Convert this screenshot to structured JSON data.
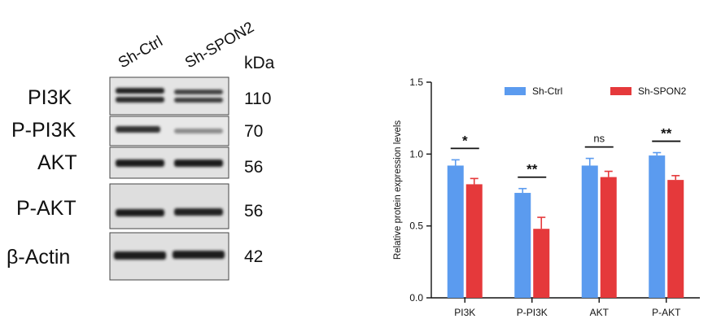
{
  "blot": {
    "lanes": [
      "Sh-Ctrl",
      "Sh-SPON2"
    ],
    "unit": "kDa",
    "rows": [
      {
        "label": "PI3K",
        "kda": "110"
      },
      {
        "label": "P-PI3K",
        "kda": "70"
      },
      {
        "label": "AKT",
        "kda": "56"
      },
      {
        "label": "P-AKT",
        "kda": "56"
      },
      {
        "label": "β-Actin",
        "kda": "42"
      }
    ]
  },
  "chart_data": {
    "type": "bar",
    "title": "",
    "ylabel": "Relative protein expression levels",
    "xlabel": "",
    "categories": [
      "PI3K",
      "P-PI3K",
      "AKT",
      "P-AKT"
    ],
    "ylim": [
      0,
      1.5
    ],
    "yticks": [
      "0.0",
      "0.5",
      "1.0",
      "1.5"
    ],
    "legend_position": "top-right",
    "series": [
      {
        "name": "Sh-Ctrl",
        "color": "#5b9bef",
        "values": [
          0.92,
          0.73,
          0.92,
          0.99
        ],
        "errors": [
          0.04,
          0.03,
          0.05,
          0.02
        ]
      },
      {
        "name": "Sh-SPON2",
        "color": "#e5393b",
        "values": [
          0.79,
          0.48,
          0.84,
          0.82
        ],
        "errors": [
          0.04,
          0.08,
          0.04,
          0.03
        ]
      }
    ],
    "significance": [
      "*",
      "**",
      "ns",
      "**"
    ]
  }
}
